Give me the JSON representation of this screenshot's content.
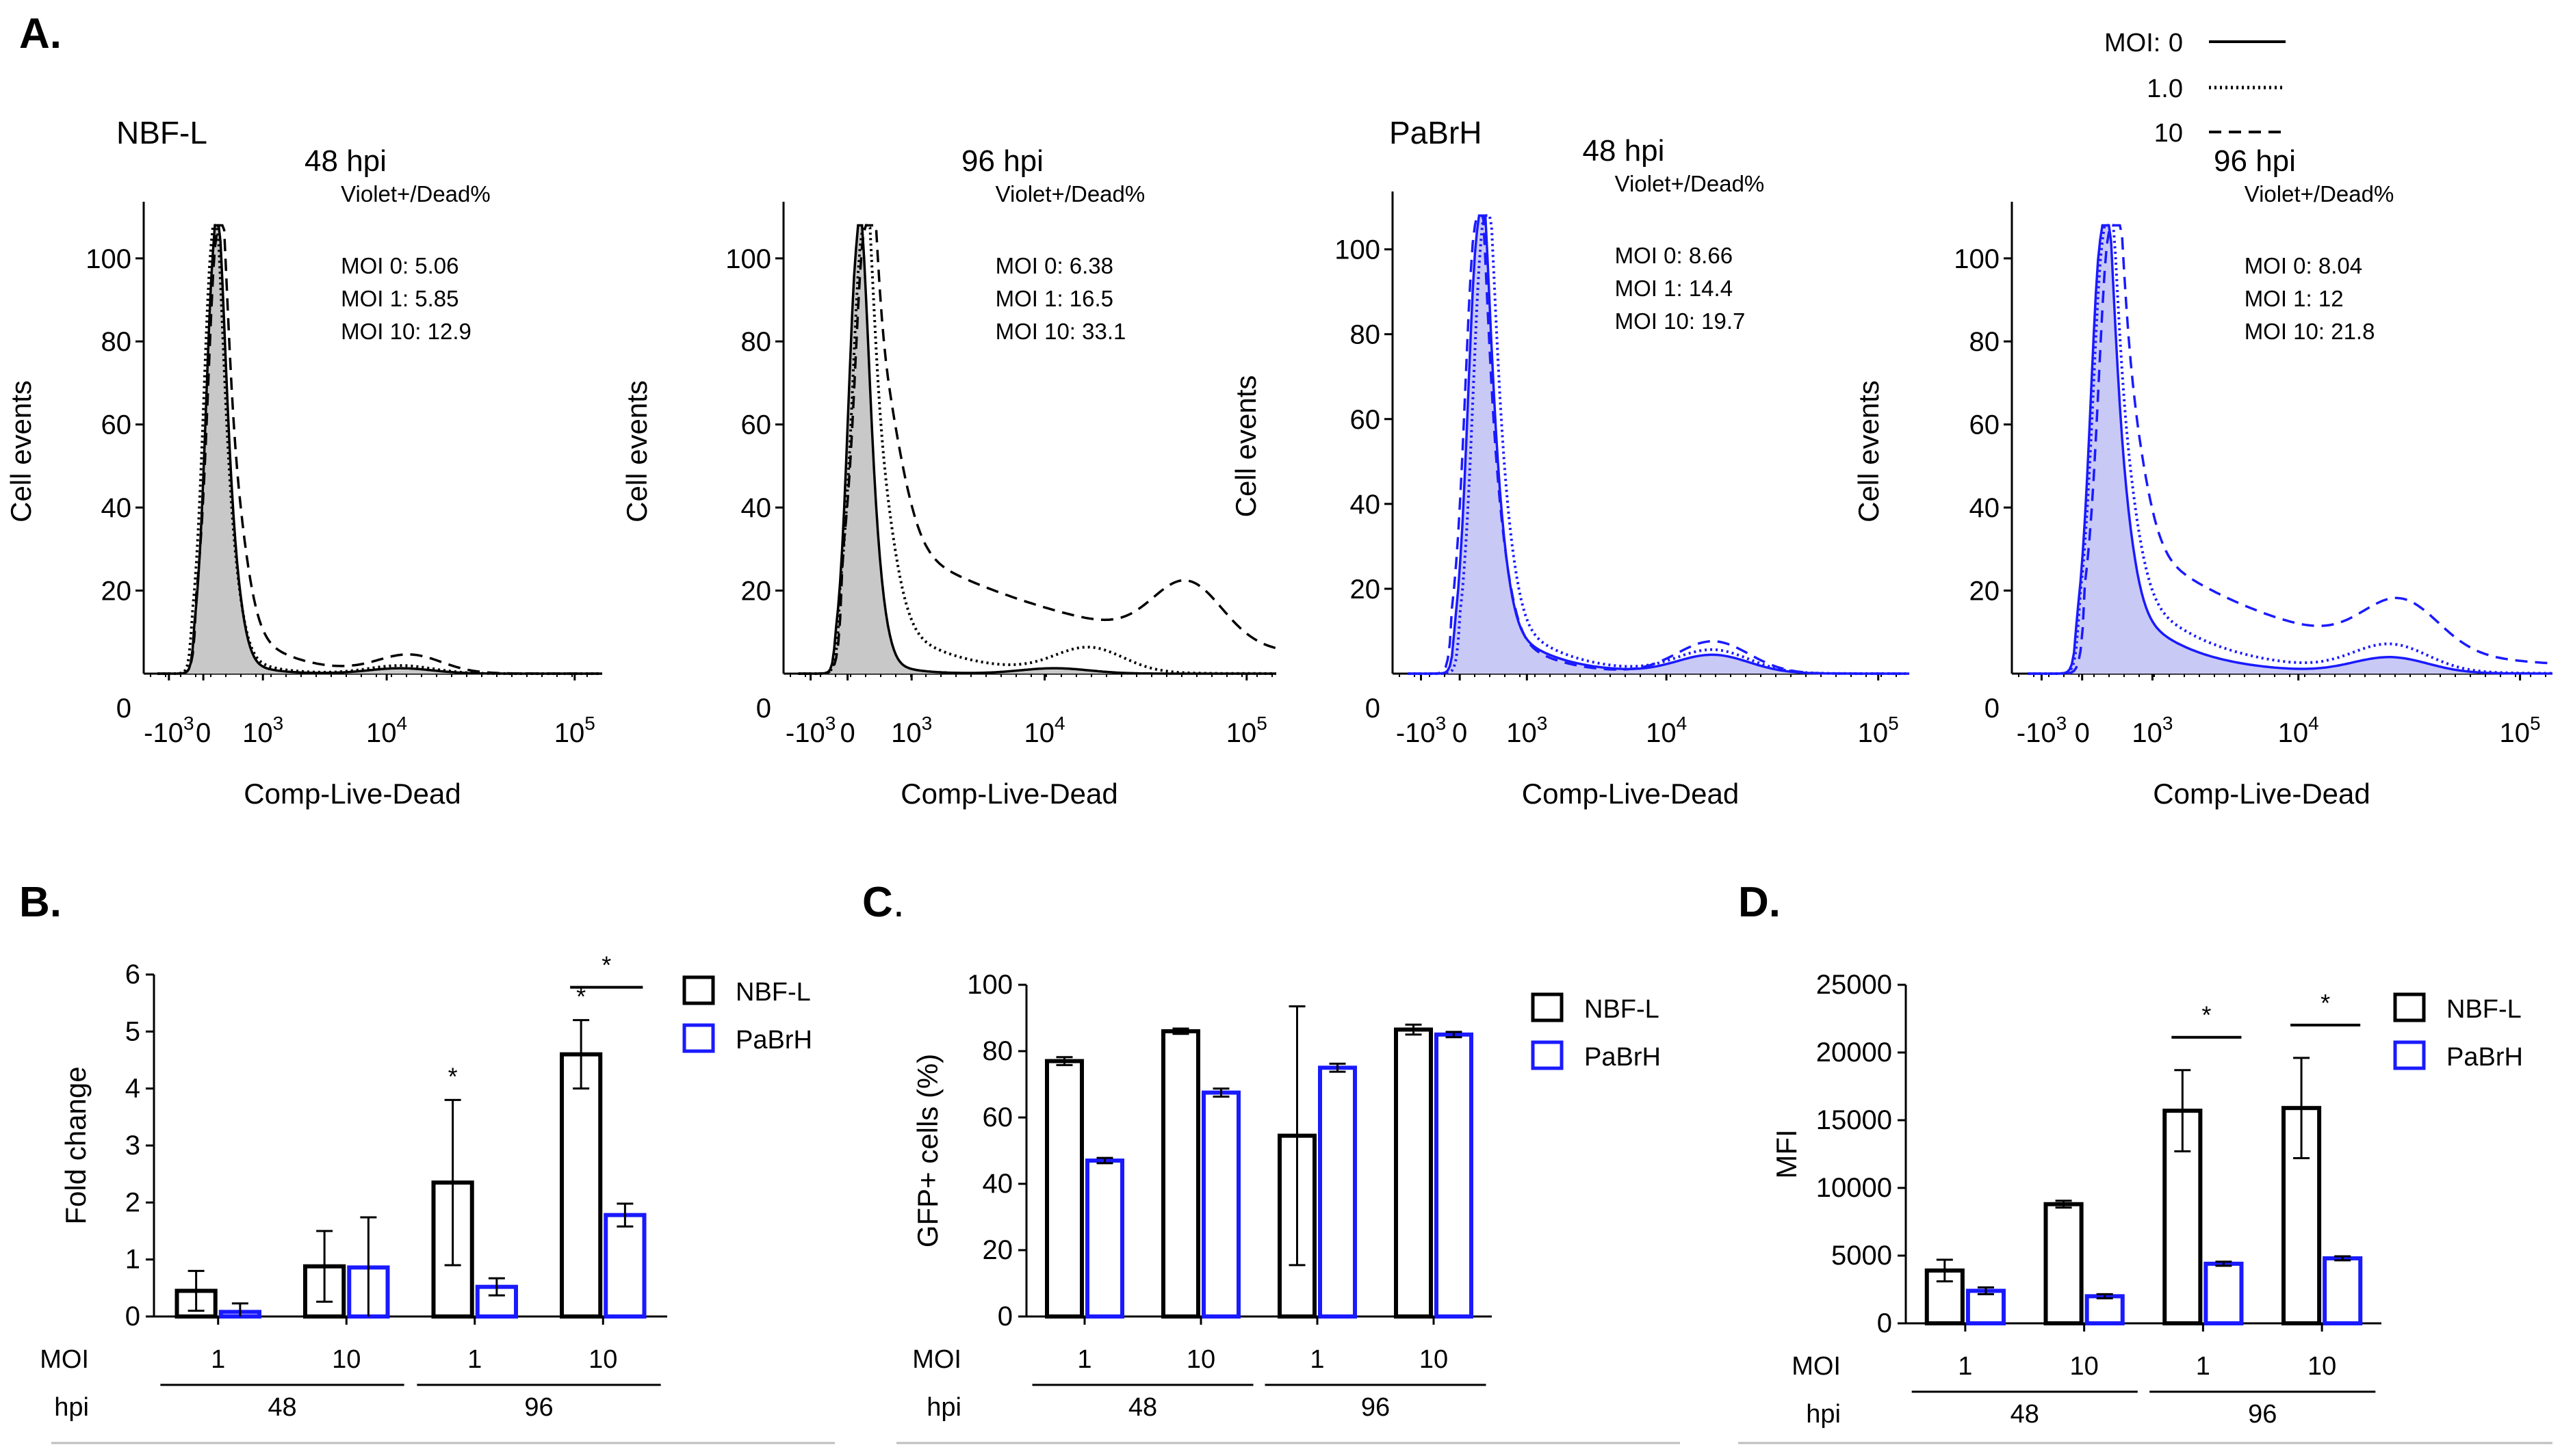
{
  "colors": {
    "nbf": "#000000",
    "pabrh": "#1a1aff",
    "nbf_fill": "#c8c8c8",
    "pabrh_fill": "#c9c9f5",
    "frame": "#bdbdbd"
  },
  "panelA": {
    "letter": "A.",
    "legend": {
      "title": "MOI:",
      "entries": [
        {
          "label": "0",
          "style": "solid"
        },
        {
          "label": "1.0",
          "style": "dotted"
        },
        {
          "label": "10",
          "style": "dashed"
        }
      ]
    },
    "groups": [
      "NBF-L",
      "PaBrH"
    ],
    "xlabel": "Comp-Live-Dead",
    "ylabel": "Cell events",
    "yticks": [
      "0",
      "20",
      "40",
      "60",
      "80",
      "100"
    ],
    "annotation_title": "Violet+/Dead%",
    "histograms": [
      {
        "group": "NBF-L",
        "title": "48 hpi",
        "color": "#000000",
        "ann": [
          "MOI 0: 5.06",
          "MOI 1: 5.85",
          "MOI 10: 12.9"
        ]
      },
      {
        "group": "NBF-L",
        "title": "96 hpi",
        "color": "#000000",
        "ann": [
          "MOI 0: 6.38",
          "MOI 1: 16.5",
          "MOI 10: 33.1"
        ]
      },
      {
        "group": "PaBrH",
        "title": "48 hpi",
        "color": "#1a1aff",
        "ann": [
          "MOI 0: 8.66",
          "MOI 1: 14.4",
          "MOI 10: 19.7"
        ]
      },
      {
        "group": "PaBrH",
        "title": "96 hpi",
        "color": "#1a1aff",
        "ann": [
          "MOI 0: 8.04",
          "MOI 1: 12",
          "MOI 10: 21.8"
        ]
      }
    ]
  },
  "chart_data": [
    {
      "panel": "B.",
      "type": "bar",
      "ylabel": "Fold change",
      "ylim": [
        0,
        6
      ],
      "yticks": [
        0,
        1,
        2,
        3,
        4,
        5,
        6
      ],
      "ytick_labels": [
        "0",
        "1",
        "2",
        "3",
        "4",
        "5",
        "6"
      ],
      "categories": [
        {
          "moi": "1",
          "hpi": "48"
        },
        {
          "moi": "10",
          "hpi": "48"
        },
        {
          "moi": "1",
          "hpi": "96"
        },
        {
          "moi": "10",
          "hpi": "96"
        }
      ],
      "row_labels": {
        "moi": "MOI",
        "hpi": "hpi"
      },
      "hpi_groups": [
        "48",
        "96"
      ],
      "series": [
        {
          "name": "NBF-L",
          "color": "#000000",
          "values": [
            0.45,
            0.88,
            2.35,
            4.6
          ],
          "errors": [
            0.35,
            0.62,
            1.45,
            0.6
          ]
        },
        {
          "name": "PaBrH",
          "color": "#1a1aff",
          "values": [
            0.08,
            0.86,
            0.52,
            1.78
          ],
          "errors": [
            0.15,
            0.88,
            0.15,
            0.2
          ]
        }
      ],
      "annotations": [
        {
          "text": "*",
          "cat": 2,
          "series": 0
        },
        {
          "text": "*",
          "cat": 3,
          "series": 0
        }
      ],
      "brackets": [
        {
          "text": "*",
          "cat": 3
        }
      ]
    },
    {
      "panel": "C",
      "panel_suffix": ".",
      "type": "bar",
      "ylabel": "GFP+ cells (%)",
      "ylim": [
        0,
        100
      ],
      "yticks": [
        0,
        20,
        40,
        60,
        80,
        100
      ],
      "ytick_labels": [
        "0",
        "20",
        "40",
        "60",
        "80",
        "100"
      ],
      "categories": [
        {
          "moi": "1",
          "hpi": "48"
        },
        {
          "moi": "10",
          "hpi": "48"
        },
        {
          "moi": "1",
          "hpi": "96"
        },
        {
          "moi": "10",
          "hpi": "96"
        }
      ],
      "row_labels": {
        "moi": "MOI",
        "hpi": "hpi"
      },
      "hpi_groups": [
        "48",
        "96"
      ],
      "series": [
        {
          "name": "NBF-L",
          "color": "#000000",
          "values": [
            77,
            86,
            54.5,
            86.5
          ],
          "errors": [
            1.2,
            0.8,
            39,
            1.5
          ]
        },
        {
          "name": "PaBrH",
          "color": "#1a1aff",
          "values": [
            47,
            67.5,
            75,
            85
          ],
          "errors": [
            0.8,
            1.2,
            1.2,
            0.8
          ]
        }
      ],
      "annotations": [],
      "brackets": []
    },
    {
      "panel": "D.",
      "type": "bar",
      "ylabel": "MFI",
      "ylim": [
        0,
        25000
      ],
      "yticks": [
        0,
        5000,
        10000,
        15000,
        20000,
        25000
      ],
      "ytick_labels": [
        "0",
        "5000",
        "10000",
        "15000",
        "20000",
        "25000"
      ],
      "categories": [
        {
          "moi": "1",
          "hpi": "48"
        },
        {
          "moi": "10",
          "hpi": "48"
        },
        {
          "moi": "1",
          "hpi": "96"
        },
        {
          "moi": "10",
          "hpi": "96"
        }
      ],
      "row_labels": {
        "moi": "MOI",
        "hpi": "hpi"
      },
      "hpi_groups": [
        "48",
        "96"
      ],
      "series": [
        {
          "name": "NBF-L",
          "color": "#000000",
          "values": [
            3900,
            8800,
            15700,
            15900
          ],
          "errors": [
            800,
            250,
            3000,
            3700
          ]
        },
        {
          "name": "PaBrH",
          "color": "#1a1aff",
          "values": [
            2400,
            2000,
            4400,
            4800
          ],
          "errors": [
            250,
            150,
            150,
            150
          ]
        }
      ],
      "annotations": [],
      "brackets": [
        {
          "text": "*",
          "cat": 2
        },
        {
          "text": "*",
          "cat": 3
        }
      ]
    }
  ]
}
